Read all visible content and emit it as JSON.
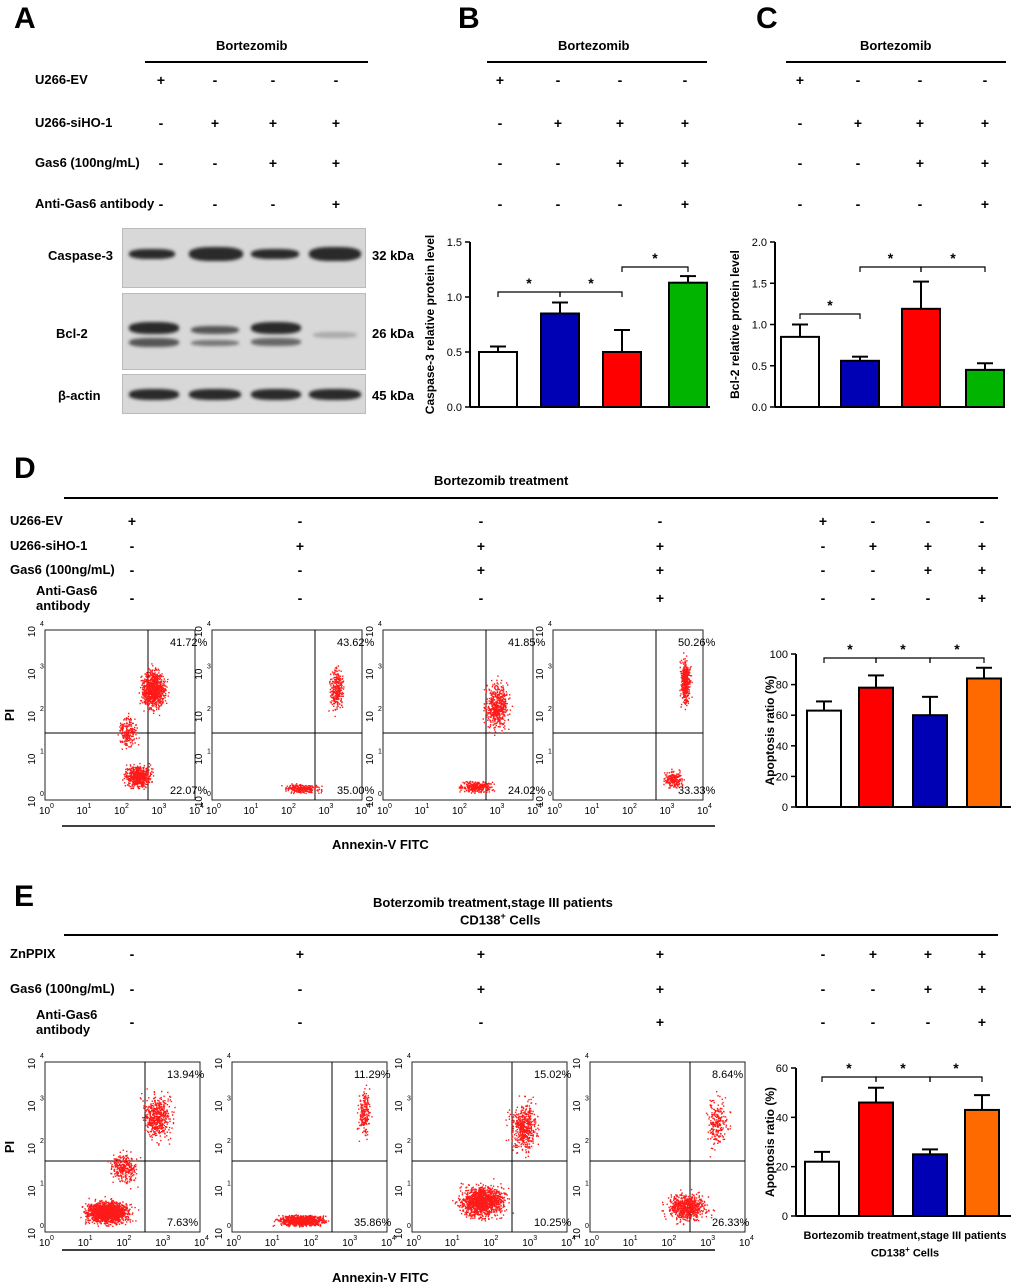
{
  "panel_labels": [
    "A",
    "B",
    "C",
    "D",
    "E"
  ],
  "panelA": {
    "header": "Bortezomib",
    "rows": [
      {
        "label": "U266-EV",
        "signs": [
          "+",
          "-",
          "-",
          "-"
        ]
      },
      {
        "label": "U266-siHO-1",
        "signs": [
          "-",
          "+",
          "+",
          "+"
        ]
      },
      {
        "label": "Gas6 (100ng/mL)",
        "signs": [
          "-",
          "-",
          "+",
          "+"
        ]
      },
      {
        "label": "Anti-Gas6 antibody",
        "signs": [
          "-",
          "-",
          "-",
          "+"
        ]
      }
    ],
    "blots": [
      {
        "label": "Caspase-3",
        "kda": "32 kDa"
      },
      {
        "label": "Bcl-2",
        "kda": "26 kDa"
      },
      {
        "label": "β-actin",
        "kda": "45 kDa"
      }
    ]
  },
  "panelB": {
    "header": "Bortezomib",
    "signs": [
      [
        "+",
        "-",
        "-",
        "-"
      ],
      [
        "-",
        "+",
        "+",
        "+"
      ],
      [
        "-",
        "-",
        "+",
        "+"
      ],
      [
        "-",
        "-",
        "-",
        "+"
      ]
    ]
  },
  "panelC": {
    "header": "Bortezomib",
    "signs": [
      [
        "+",
        "-",
        "-",
        "-"
      ],
      [
        "-",
        "+",
        "+",
        "+"
      ],
      [
        "-",
        "-",
        "+",
        "+"
      ],
      [
        "-",
        "-",
        "-",
        "+"
      ]
    ]
  },
  "panelD": {
    "header": "Bortezomib treatment",
    "rows": [
      {
        "label": "U266-EV",
        "signs": [
          "+",
          "-",
          "-",
          "-"
        ]
      },
      {
        "label": "U266-siHO-1",
        "signs": [
          "-",
          "+",
          "+",
          "+"
        ]
      },
      {
        "label": "Gas6 (100ng/mL)",
        "signs": [
          "-",
          "-",
          "+",
          "+"
        ]
      },
      {
        "label": "Anti-Gas6",
        "label2": "antibody",
        "signs": [
          "-",
          "-",
          "-",
          "+"
        ]
      }
    ],
    "right_signs": [
      [
        "+",
        "-",
        "-",
        "-"
      ],
      [
        "-",
        "+",
        "+",
        "+"
      ],
      [
        "-",
        "-",
        "+",
        "+"
      ],
      [
        "-",
        "-",
        "-",
        "+"
      ]
    ],
    "flow_upper": [
      "41.72%",
      "43.62%",
      "41.85%",
      "50.26%"
    ],
    "flow_lower": [
      "22.07%",
      "35.00%",
      "24.02%",
      "33.33%"
    ],
    "x_axis_label": "Annexin-V FITC",
    "y_axis_label": "PI"
  },
  "panelE": {
    "header_line1": "Boterzomib treatment,stage III patients",
    "header_line2": "CD138",
    "header_sup": "+",
    "header_tail": " Cells",
    "rows": [
      {
        "label": "ZnPPIX",
        "signs": [
          "-",
          "+",
          "+",
          "+"
        ]
      },
      {
        "label": "Gas6 (100ng/mL)",
        "signs": [
          "-",
          "-",
          "+",
          "+"
        ]
      },
      {
        "label": "Anti-Gas6",
        "label2": "antibody",
        "signs": [
          "-",
          "-",
          "-",
          "+"
        ]
      }
    ],
    "right_signs": [
      [
        "-",
        "+",
        "+",
        "+"
      ],
      [
        "-",
        "-",
        "+",
        "+"
      ],
      [
        "-",
        "-",
        "-",
        "+"
      ]
    ],
    "flow_upper": [
      "13.94%",
      "11.29%",
      "15.02%",
      "8.64%"
    ],
    "flow_lower": [
      "7.63%",
      "35.86%",
      "10.25%",
      "26.33%"
    ],
    "x_axis_label": "Annexin-V FITC",
    "y_axis_label": "PI",
    "chart_xlabel_line1": "Bortezomib treatment,stage III patients",
    "chart_xlabel_line2": "CD138",
    "chart_xlabel_sup": "+",
    "chart_xlabel_tail": " Cells"
  },
  "flow_ticks": [
    "10",
    "10",
    "10",
    "10",
    "10"
  ],
  "flow_tick_exp": [
    "0",
    "1",
    "2",
    "3",
    "4"
  ],
  "chart_data": [
    {
      "id": "B",
      "type": "bar",
      "ylabel": "Caspase-3 relative protein level",
      "ylim": [
        0,
        1.5
      ],
      "yticks": [
        "0.0",
        "0.5",
        "1.0",
        "1.5"
      ],
      "values": [
        0.5,
        0.85,
        0.5,
        1.13
      ],
      "errors": [
        0.05,
        0.1,
        0.2,
        0.06
      ],
      "colors": [
        "#ffffff",
        "#0000b4",
        "#ff0000",
        "#00b400"
      ],
      "significance": [
        "*",
        "*",
        "*"
      ]
    },
    {
      "id": "C",
      "type": "bar",
      "ylabel": "Bcl-2 relative protein level",
      "ylim": [
        0,
        2.0
      ],
      "yticks": [
        "0.0",
        "0.5",
        "1.0",
        "1.5",
        "2.0"
      ],
      "values": [
        0.85,
        0.56,
        1.19,
        0.45
      ],
      "errors": [
        0.15,
        0.05,
        0.33,
        0.08
      ],
      "colors": [
        "#ffffff",
        "#0000b4",
        "#ff0000",
        "#00b400"
      ],
      "significance": [
        "*",
        "*",
        "*"
      ]
    },
    {
      "id": "D",
      "type": "bar",
      "ylabel": "Apoptosis ratio (%)",
      "ylim": [
        0,
        100
      ],
      "yticks": [
        "0",
        "20",
        "40",
        "60",
        "80",
        "100"
      ],
      "values": [
        63,
        78,
        60,
        84
      ],
      "errors": [
        6,
        8,
        12,
        7
      ],
      "colors": [
        "#ffffff",
        "#ff0000",
        "#0000b4",
        "#ff6a00"
      ],
      "significance": [
        "*",
        "*",
        "*"
      ]
    },
    {
      "id": "E",
      "type": "bar",
      "ylabel": "Apoptosis ratio (%)",
      "ylim": [
        0,
        60
      ],
      "yticks": [
        "0",
        "20",
        "40",
        "60"
      ],
      "values": [
        22,
        46,
        25,
        43
      ],
      "errors": [
        4,
        6,
        2,
        6
      ],
      "colors": [
        "#ffffff",
        "#ff0000",
        "#0000b4",
        "#ff6a00"
      ],
      "significance": [
        "*",
        "*",
        "*"
      ]
    }
  ]
}
